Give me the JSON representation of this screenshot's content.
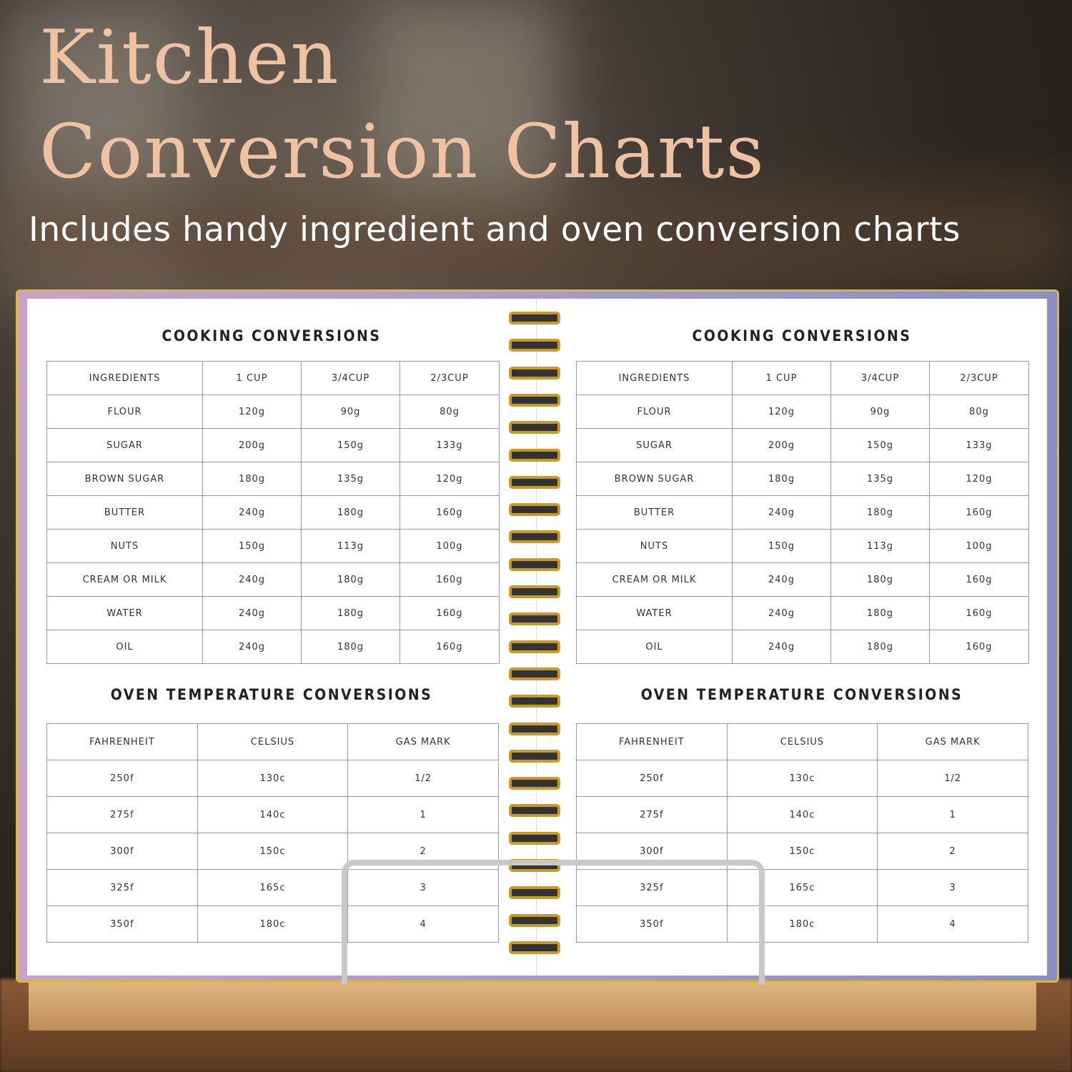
{
  "header": {
    "title_line1": "Kitchen",
    "title_line2": "Conversion Charts",
    "subtitle": "Includes handy ingredient and oven conversion charts"
  },
  "cooking": {
    "heading": "COOKING CONVERSIONS",
    "columns": [
      "INGREDIENTS",
      "1 CUP",
      "3/4CUP",
      "2/3CUP"
    ],
    "rows": [
      [
        "FLOUR",
        "120g",
        "90g",
        "80g"
      ],
      [
        "SUGAR",
        "200g",
        "150g",
        "133g"
      ],
      [
        "BROWN SUGAR",
        "180g",
        "135g",
        "120g"
      ],
      [
        "BUTTER",
        "240g",
        "180g",
        "160g"
      ],
      [
        "NUTS",
        "150g",
        "113g",
        "100g"
      ],
      [
        "CREAM OR MILK",
        "240g",
        "180g",
        "160g"
      ],
      [
        "WATER",
        "240g",
        "180g",
        "160g"
      ],
      [
        "OIL",
        "240g",
        "180g",
        "160g"
      ]
    ]
  },
  "oven": {
    "heading": "OVEN TEMPERATURE CONVERSIONS",
    "columns": [
      "FAHRENHEIT",
      "CELSIUS",
      "GAS MARK"
    ],
    "rows": [
      [
        "250f",
        "130c",
        "1/2"
      ],
      [
        "275f",
        "140c",
        "1"
      ],
      [
        "300f",
        "150c",
        "2"
      ],
      [
        "325f",
        "165c",
        "3"
      ],
      [
        "350f",
        "180c",
        "4"
      ]
    ]
  },
  "colors": {
    "title": "#f0c2a4",
    "ring": "#c99a2a",
    "cover": "#a89ac8"
  }
}
